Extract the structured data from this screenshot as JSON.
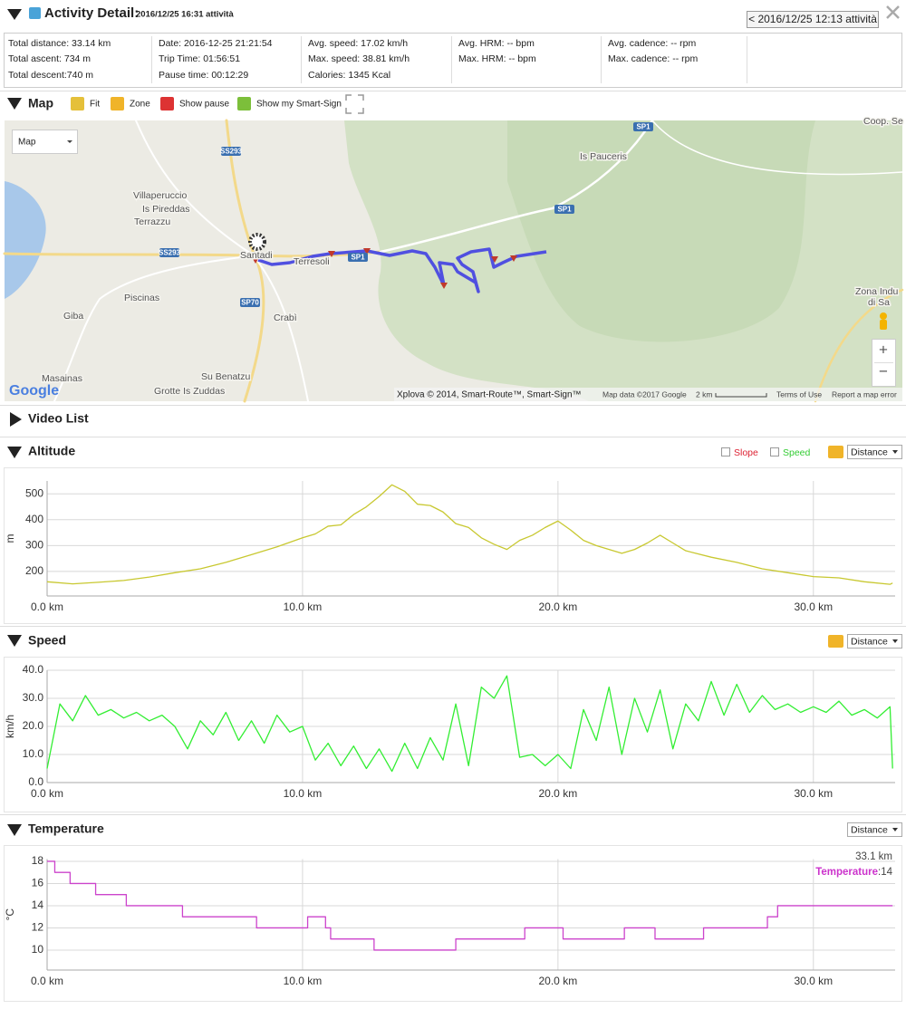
{
  "header": {
    "title": "Activity Detail:",
    "subtitle": "2016/12/25 16:31 attività",
    "prev_button": "< 2016/12/25 12:13 attività"
  },
  "stats": [
    [
      "Total distance: 33.14 km",
      "Total ascent: 734 m",
      "Total descent:740 m"
    ],
    [
      "Date: 2016-12-25 21:21:54",
      "Trip Time: 01:56:51",
      "Pause time: 00:12:29"
    ],
    [
      "Avg. speed: 17.02 km/h",
      "Max. speed: 38.81 km/h",
      "Calories: 1345 Kcal"
    ],
    [
      "Avg. HRM: -- bpm",
      "Max. HRM: -- bpm"
    ],
    [
      "Avg. cadence: -- rpm",
      "Max. cadence: -- rpm"
    ]
  ],
  "map": {
    "title": "Map",
    "tools": [
      "Fit",
      "Zone",
      "Show pause",
      "Show my Smart-Sign"
    ],
    "type_select": "Map",
    "labels": [
      "Villaperuccio",
      "Is Pireddas",
      "Terrazzu",
      "Piscinas",
      "Giba",
      "Masainas",
      "Su Benatzu",
      "Grotte Is Zuddas",
      "Crabì",
      "Santadi",
      "Terresoli",
      "Is Pauceris",
      "Zona Indu",
      "di Sa",
      "Coop. Se"
    ],
    "roads": [
      "SS293",
      "SS293",
      "SP70",
      "SP1",
      "SP1",
      "SP1"
    ],
    "logo": "Google",
    "attribution": "Xplova © 2014, Smart-Route™, Smart-Sign™",
    "map_data": "Map data ©2017 Google",
    "scale": "2 km",
    "terms": "Terms of Use",
    "report": "Report a map error",
    "zoom_in": "+",
    "zoom_out": "−"
  },
  "video_list": {
    "title": "Video List"
  },
  "altitude": {
    "title": "Altitude",
    "options": [
      "Slope",
      "Speed"
    ],
    "select": "Distance",
    "chart": {
      "type": "line",
      "y_label": "m",
      "color": "#c8c830",
      "grid": true,
      "x": [
        0,
        1,
        2,
        3,
        4,
        5,
        6,
        7,
        8,
        9,
        10,
        10.5,
        11,
        11.5,
        12,
        12.5,
        13,
        13.5,
        14,
        14.5,
        15,
        15.5,
        16,
        16.5,
        17,
        17.5,
        18,
        18.5,
        19,
        19.5,
        20,
        20.5,
        21,
        21.5,
        22,
        22.5,
        23,
        23.5,
        24,
        24.5,
        25,
        26,
        27,
        28,
        29,
        30,
        31,
        32,
        33,
        33.1
      ],
      "values": [
        160,
        152,
        158,
        165,
        178,
        195,
        210,
        235,
        265,
        295,
        330,
        345,
        375,
        380,
        420,
        450,
        490,
        535,
        510,
        460,
        455,
        430,
        385,
        370,
        330,
        305,
        285,
        320,
        340,
        370,
        395,
        360,
        320,
        300,
        285,
        270,
        285,
        310,
        340,
        310,
        280,
        255,
        235,
        210,
        195,
        180,
        175,
        160,
        150,
        155
      ],
      "xlim": [
        0,
        33.2
      ],
      "ylim": [
        105,
        550
      ],
      "xticks": [
        {
          "value": 0,
          "label": "0.0 km"
        },
        {
          "value": 10,
          "label": "10.0 km"
        },
        {
          "value": 20,
          "label": "20.0 km"
        },
        {
          "value": 30,
          "label": "30.0 km"
        }
      ],
      "yticks": [
        200,
        300,
        400,
        500
      ]
    }
  },
  "speed": {
    "title": "Speed",
    "select": "Distance",
    "chart": {
      "type": "line",
      "y_label": "km/h",
      "color": "#33ee33",
      "grid": true,
      "x": [
        0,
        0.5,
        1,
        1.5,
        2,
        2.5,
        3,
        3.5,
        4,
        4.5,
        5,
        5.5,
        6,
        6.5,
        7,
        7.5,
        8,
        8.5,
        9,
        9.5,
        10,
        10.5,
        11,
        11.5,
        12,
        12.5,
        13,
        13.5,
        14,
        14.5,
        15,
        15.5,
        16,
        16.5,
        17,
        17.5,
        18,
        18.5,
        19,
        19.5,
        20,
        20.5,
        21,
        21.5,
        22,
        22.5,
        23,
        23.5,
        24,
        24.5,
        25,
        25.5,
        26,
        26.5,
        27,
        27.5,
        28,
        28.5,
        29,
        29.5,
        30,
        30.5,
        31,
        31.5,
        32,
        32.5,
        33,
        33.1
      ],
      "values": [
        5,
        28,
        22,
        31,
        24,
        26,
        23,
        25,
        22,
        24,
        20,
        12,
        22,
        17,
        25,
        15,
        22,
        14,
        24,
        18,
        20,
        8,
        14,
        6,
        13,
        5,
        12,
        4,
        14,
        5,
        16,
        8,
        28,
        6,
        34,
        30,
        38,
        9,
        10,
        6,
        10,
        5,
        26,
        15,
        34,
        10,
        30,
        18,
        33,
        12,
        28,
        22,
        36,
        24,
        35,
        25,
        31,
        26,
        28,
        25,
        27,
        25,
        29,
        24,
        26,
        23,
        27,
        5
      ],
      "xlim": [
        0,
        33.2
      ],
      "ylim": [
        0,
        40
      ],
      "xticks": [
        {
          "value": 0,
          "label": "0.0 km"
        },
        {
          "value": 10,
          "label": "10.0 km"
        },
        {
          "value": 20,
          "label": "20.0 km"
        },
        {
          "value": 30,
          "label": "30.0 km"
        }
      ],
      "yticks": [
        {
          "value": 0,
          "label": "0.0"
        },
        {
          "value": 10,
          "label": "10.0"
        },
        {
          "value": 20,
          "label": "20.0"
        },
        {
          "value": 30,
          "label": "30.0"
        },
        {
          "value": 40,
          "label": "40.0"
        }
      ]
    }
  },
  "temperature": {
    "title": "Temperature",
    "select": "Distance",
    "tooltip": {
      "x_label": "33.1 km",
      "series": "Temperature",
      "value_label": ":14"
    },
    "chart": {
      "type": "line",
      "step": "post",
      "y_label": "°C",
      "color": "#cc44cc",
      "grid": true,
      "x": [
        0,
        0.3,
        0.9,
        1.9,
        3.1,
        5.3,
        8.2,
        10.2,
        10.9,
        11.1,
        12.8,
        16,
        18.7,
        20.2,
        22.6,
        23.8,
        25.7,
        28.2,
        28.6,
        33.1
      ],
      "values": [
        18,
        17,
        16,
        15,
        14,
        13,
        12,
        13,
        12,
        11,
        10,
        11,
        12,
        11,
        12,
        11,
        12,
        13,
        14,
        14
      ],
      "xlim": [
        0,
        33.2
      ],
      "ylim": [
        8.2,
        18.2
      ],
      "xticks": [
        {
          "value": 0,
          "label": "0.0 km"
        },
        {
          "value": 10,
          "label": "10.0 km"
        },
        {
          "value": 20,
          "label": "20.0 km"
        },
        {
          "value": 30,
          "label": "30.0 km"
        }
      ],
      "yticks": [
        10,
        12,
        14,
        16,
        18
      ]
    }
  }
}
